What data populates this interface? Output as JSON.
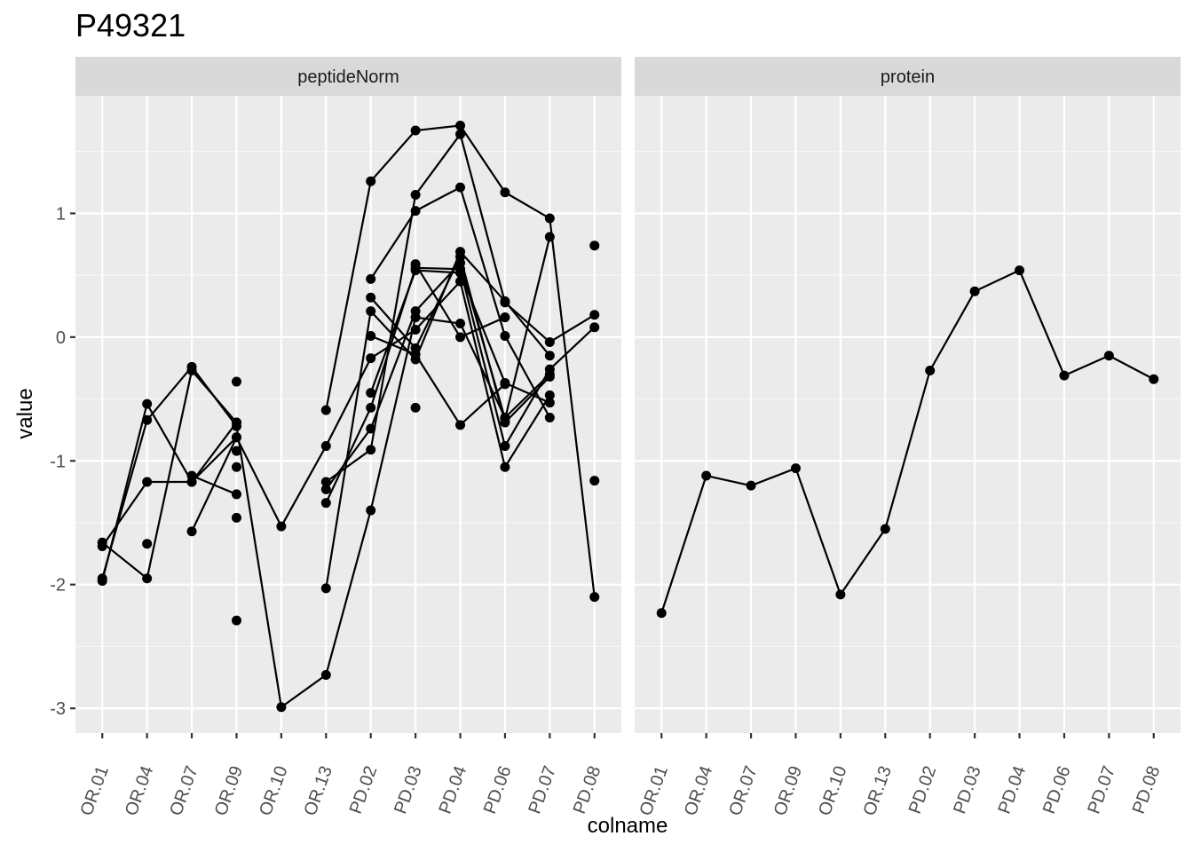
{
  "chart_data": {
    "type": "line",
    "title": "P49321",
    "xlabel": "colname",
    "ylabel": "value",
    "categories": [
      "OR.01",
      "OR.04",
      "OR.07",
      "OR.09",
      "OR.10",
      "OR.13",
      "PD.02",
      "PD.03",
      "PD.04",
      "PD.06",
      "PD.07",
      "PD.08"
    ],
    "ylim": [
      -3.2,
      1.95
    ],
    "yticks": [
      -3,
      -2,
      -1,
      0,
      1
    ],
    "grid": true,
    "legend": "none",
    "facets": [
      {
        "label": "peptideNorm",
        "series": [
          {
            "values": [
              -1.97,
              -0.54,
              -1.17,
              -0.69,
              null,
              -1.34,
              -0.57,
              0.56,
              0.55,
              -0.88,
              -0.26,
              0.08
            ]
          },
          {
            "values": [
              -1.69,
              -1.17,
              -1.17,
              -0.81,
              -1.53,
              -0.88,
              -0.17,
              0.06,
              0.45,
              -1.05,
              -0.47,
              null
            ]
          },
          {
            "values": [
              -1.95,
              -0.67,
              -0.24,
              -0.72,
              -2.99,
              -2.73,
              -1.4,
              0.16,
              0.11,
              -0.65,
              -0.3,
              null
            ]
          },
          {
            "values": [
              -1.66,
              -1.95,
              -0.27,
              -0.69,
              null,
              -0.59,
              1.26,
              1.67,
              1.71,
              1.17,
              0.96,
              -2.1
            ]
          },
          {
            "values": [
              null,
              null,
              -1.12,
              -1.27,
              null,
              -1.17,
              -0.91,
              1.15,
              1.64,
              0.28,
              -0.04,
              0.18
            ]
          },
          {
            "values": [
              null,
              null,
              -1.57,
              -0.81,
              null,
              -2.03,
              0.21,
              -0.18,
              0.69,
              0.29,
              -0.15,
              null
            ]
          },
          {
            "values": [
              null,
              null,
              null,
              null,
              null,
              -1.23,
              -0.74,
              0.21,
              0.6,
              -0.66,
              0.81,
              null
            ]
          },
          {
            "values": [
              null,
              null,
              null,
              null,
              null,
              null,
              -0.45,
              0.54,
              0.52,
              -0.37,
              -0.53,
              null
            ]
          },
          {
            "values": [
              null,
              null,
              null,
              null,
              null,
              null,
              0.47,
              1.02,
              1.21,
              0.01,
              -0.65,
              null
            ]
          },
          {
            "values": [
              null,
              null,
              null,
              null,
              null,
              null,
              0.32,
              -0.09,
              0.65,
              -0.69,
              -0.32,
              null
            ]
          },
          {
            "values": [
              null,
              null,
              null,
              null,
              null,
              null,
              0.01,
              -0.14,
              -0.71,
              -0.38,
              null,
              null
            ]
          },
          {
            "values": [
              null,
              null,
              null,
              null,
              null,
              null,
              null,
              0.59,
              0.0,
              0.16,
              null,
              null
            ]
          }
        ],
        "points": [
          {
            "x": "OR.04",
            "y": -1.67
          },
          {
            "x": "OR.09",
            "y": -0.36
          },
          {
            "x": "OR.09",
            "y": -0.92
          },
          {
            "x": "OR.09",
            "y": -1.05
          },
          {
            "x": "OR.09",
            "y": -1.46
          },
          {
            "x": "OR.09",
            "y": -2.29
          },
          {
            "x": "PD.03",
            "y": -0.57
          },
          {
            "x": "PD.08",
            "y": 0.74
          },
          {
            "x": "PD.08",
            "y": -1.16
          }
        ]
      },
      {
        "label": "protein",
        "series": [
          {
            "values": [
              -2.23,
              -1.12,
              -1.2,
              -1.06,
              -2.08,
              -1.55,
              -0.27,
              0.37,
              0.54,
              -0.31,
              -0.15,
              -0.34
            ]
          }
        ],
        "points": []
      }
    ]
  }
}
